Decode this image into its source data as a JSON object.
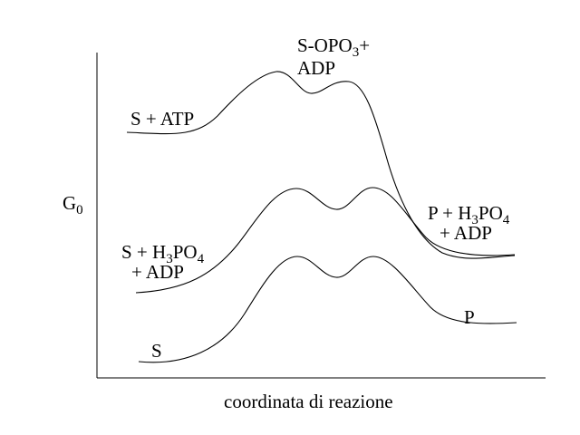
{
  "axes": {
    "y_label": {
      "main": "G",
      "sub": "0"
    },
    "x_label": "coordinata  di  reazione"
  },
  "curves": [
    {
      "id": "curve-atp",
      "start_label": "S + ATP",
      "peak_label": {
        "line1_a": "S-OPO",
        "line1_sub": "3",
        "line1_b": "+",
        "line2": "ADP"
      },
      "end_label": {
        "line1_a": "P + H",
        "line1_sub1": "3",
        "line1_b": "PO",
        "line1_sub2": "4",
        "line2": "+ ADP"
      }
    },
    {
      "id": "curve-phosphate",
      "start_label": {
        "line1_a": "S + H",
        "line1_sub1": "3",
        "line1_b": "PO",
        "line1_sub2": "4",
        "line2": "+ ADP"
      }
    },
    {
      "id": "curve-simple",
      "start_label": "S",
      "end_label": "P"
    }
  ]
}
